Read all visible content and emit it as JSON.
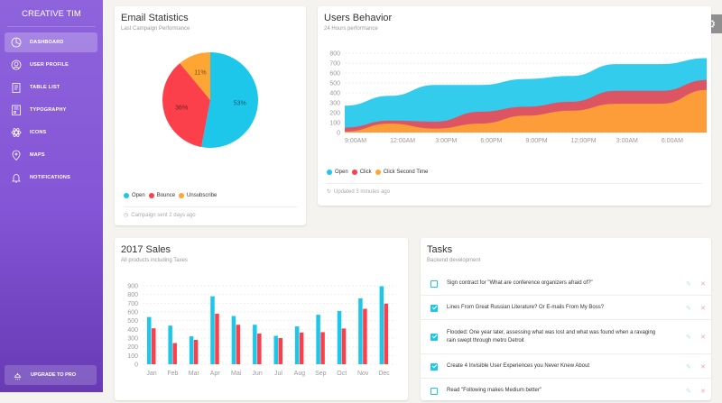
{
  "sidebar": {
    "brand": "CREATIVE TIM",
    "items": [
      {
        "label": "DASHBOARD",
        "icon": "chart-pie-icon",
        "active": true
      },
      {
        "label": "USER PROFILE",
        "icon": "user-circle-icon"
      },
      {
        "label": "TABLE LIST",
        "icon": "clipboard-icon"
      },
      {
        "label": "TYPOGRAPHY",
        "icon": "building-icon"
      },
      {
        "label": "ICONS",
        "icon": "atom-icon"
      },
      {
        "label": "MAPS",
        "icon": "map-pin-icon"
      },
      {
        "label": "NOTIFICATIONS",
        "icon": "bell-icon"
      }
    ],
    "upgrade": "UPGRADE TO PRO"
  },
  "colors": {
    "open": "#1dc7ea",
    "click": "#fb404b",
    "second": "#ffa534",
    "purple": "#8e63dc"
  },
  "email": {
    "title": "Email Statistics",
    "subtitle": "Last Campaign Performance",
    "legend": [
      "Open",
      "Bounce",
      "Unsubscribe"
    ],
    "footer": "Campaign sent 2 days ago"
  },
  "users": {
    "title": "Users Behavior",
    "subtitle": "24 Hours performance",
    "legend": [
      "Open",
      "Click",
      "Click Second Time"
    ],
    "footer": "Updated 3 minutes ago"
  },
  "sales": {
    "title": "2017 Sales",
    "subtitle": "All products including Taxes"
  },
  "tasks": {
    "title": "Tasks",
    "subtitle": "Backend development",
    "items": [
      {
        "text": "Sign contract for \"What are conference organizers afraid of?\"",
        "checked": false
      },
      {
        "text": "Lines From Great Russian Literature? Or E-mails From My Boss?",
        "checked": true
      },
      {
        "text": "Flooded: One year later, assessing what was lost and what was found when a ravaging rain swept through metro Detroit",
        "checked": true
      },
      {
        "text": "Create 4 Invisible User Experiences you Never Knew About",
        "checked": true
      },
      {
        "text": "Read \"Following makes Medium better\"",
        "checked": false
      }
    ]
  },
  "chart_data": [
    {
      "type": "pie",
      "labels": [
        "Open",
        "Bounce",
        "Unsubscribe"
      ],
      "values": [
        53,
        36,
        11
      ],
      "data_labels": [
        "53%",
        "36%",
        "11%"
      ]
    },
    {
      "type": "area",
      "categories": [
        "9:00AM",
        "12:00AM",
        "3:00PM",
        "6:00PM",
        "9:00PM",
        "12:00PM",
        "3:00AM",
        "6:00AM",
        ""
      ],
      "ylim": [
        0,
        800
      ],
      "yticks": [
        0,
        100,
        200,
        300,
        400,
        500,
        600,
        700,
        800
      ],
      "grid": true,
      "legend": "bottom",
      "series": [
        {
          "name": "Open",
          "values": [
            270,
            370,
            480,
            480,
            540,
            570,
            690,
            690,
            750
          ]
        },
        {
          "name": "Click",
          "values": [
            50,
            120,
            110,
            210,
            260,
            310,
            420,
            420,
            530
          ]
        },
        {
          "name": "Click Second Time",
          "values": [
            10,
            90,
            40,
            90,
            170,
            220,
            290,
            290,
            430
          ]
        }
      ]
    },
    {
      "type": "bar",
      "categories": [
        "Jan",
        "Feb",
        "Mar",
        "Apr",
        "Mai",
        "Jun",
        "Jul",
        "Aug",
        "Sep",
        "Oct",
        "Nov",
        "Dec"
      ],
      "ylim": [
        0,
        900
      ],
      "yticks": [
        0,
        100,
        200,
        300,
        400,
        500,
        600,
        700,
        800,
        900
      ],
      "grid": true,
      "series": [
        {
          "values": [
            542,
            443,
            320,
            780,
            553,
            453,
            326,
            434,
            568,
            610,
            756,
            895
          ]
        },
        {
          "values": [
            412,
            243,
            280,
            580,
            453,
            353,
            300,
            364,
            368,
            410,
            636,
            695
          ]
        }
      ]
    }
  ]
}
